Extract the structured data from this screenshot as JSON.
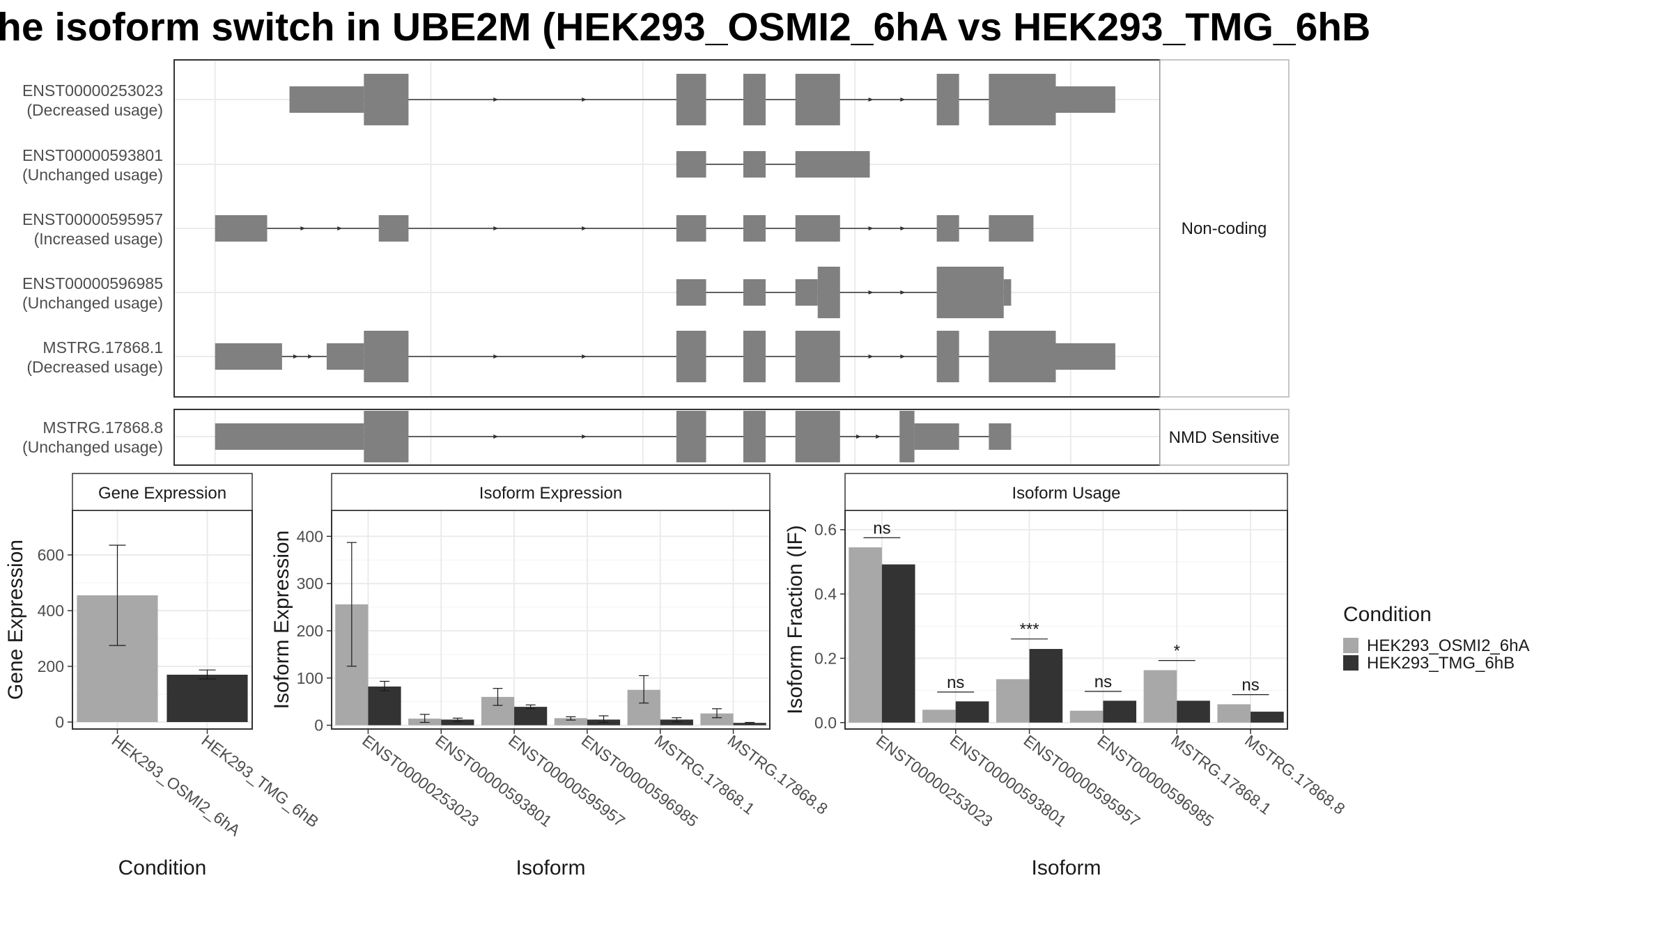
{
  "title": "he isoform switch in UBE2M (HEK293_OSMI2_6hA vs HEK293_TMG_6hB",
  "colors": {
    "cond_a": "#a8a8a8",
    "cond_b": "#333333",
    "exon": "#808080",
    "grid": "#ebebeb",
    "panel_border": "#333333",
    "strip_border": "#333333"
  },
  "structure_panels": [
    {
      "label": "Non-coding",
      "isoforms": [
        {
          "id": "ENST00000253023",
          "usage": "(Decreased usage)",
          "introns": [
            [
              0.48,
              0.65
            ],
            [
              0.79,
              0.8
            ]
          ],
          "blocks": [
            [
              0.96,
              1.06,
              "t"
            ],
            [
              1.06,
              1.12,
              "c"
            ],
            [
              1.48,
              1.52,
              "c"
            ],
            [
              1.57,
              1.6,
              "c"
            ],
            [
              1.64,
              1.7,
              "c"
            ],
            [
              1.83,
              1.86,
              "c"
            ],
            [
              1.9,
              1.99,
              "c"
            ],
            [
              1.99,
              2.07,
              "t"
            ]
          ]
        },
        {
          "id": "ENST00000593801",
          "usage": "(Unchanged usage)",
          "introns": [
            [
              1.48,
              1.7
            ]
          ],
          "blocks": [
            [
              1.48,
              1.52,
              "t"
            ],
            [
              1.57,
              1.6,
              "t"
            ],
            [
              1.64,
              1.74,
              "t"
            ]
          ]
        },
        {
          "id": "ENST00000595957",
          "usage": "(Increased usage)",
          "introns": [
            [
              0.86,
              1.01
            ]
          ],
          "blocks": [
            [
              0.86,
              0.93,
              "t"
            ],
            [
              1.08,
              1.12,
              "t"
            ],
            [
              1.48,
              1.52,
              "t"
            ],
            [
              1.57,
              1.6,
              "t"
            ],
            [
              1.64,
              1.7,
              "t"
            ],
            [
              1.83,
              1.86,
              "t"
            ],
            [
              1.9,
              1.96,
              "t"
            ]
          ]
        },
        {
          "id": "ENST00000596985",
          "usage": "(Unchanged usage)",
          "introns": [
            [
              1.48,
              1.88
            ]
          ],
          "blocks": [
            [
              1.48,
              1.52,
              "t"
            ],
            [
              1.57,
              1.6,
              "t"
            ],
            [
              1.64,
              1.67,
              "t"
            ],
            [
              1.67,
              1.7,
              "c"
            ],
            [
              1.83,
              1.92,
              "c"
            ],
            [
              1.92,
              1.93,
              "t"
            ]
          ]
        },
        {
          "id": "MSTRG.17868.1",
          "usage": "(Decreased usage)",
          "introns": [
            [
              0.86,
              1.99
            ]
          ],
          "blocks": [
            [
              0.86,
              0.95,
              "t"
            ],
            [
              1.01,
              1.06,
              "t"
            ],
            [
              1.06,
              1.12,
              "c"
            ],
            [
              1.48,
              1.52,
              "c"
            ],
            [
              1.57,
              1.6,
              "c"
            ],
            [
              1.64,
              1.7,
              "c"
            ],
            [
              1.83,
              1.86,
              "c"
            ],
            [
              1.9,
              1.99,
              "c"
            ],
            [
              1.99,
              2.07,
              "t"
            ]
          ]
        }
      ]
    },
    {
      "label": "NMD Sensitive",
      "isoforms": [
        {
          "id": "MSTRG.17868.8",
          "usage": "(Unchanged usage)",
          "introns": [
            [
              0.86,
              1.93
            ]
          ],
          "blocks": [
            [
              0.86,
              1.06,
              "t"
            ],
            [
              1.06,
              1.12,
              "c"
            ],
            [
              1.48,
              1.52,
              "c"
            ],
            [
              1.57,
              1.6,
              "c"
            ],
            [
              1.64,
              1.7,
              "c"
            ],
            [
              1.78,
              1.8,
              "c"
            ],
            [
              1.8,
              1.86,
              "t"
            ],
            [
              1.9,
              1.93,
              "t"
            ]
          ]
        }
      ]
    }
  ],
  "chart_data": [
    {
      "type": "bar",
      "title": "Gene Expression",
      "xlabel": "Condition",
      "ylabel": "Gene Expression",
      "ylim": [
        -25,
        760
      ],
      "yticks": [
        0,
        200,
        400,
        600
      ],
      "categories": [
        "HEK293_OSMI2_6hA",
        "HEK293_TMG_6hB"
      ],
      "values": [
        455,
        170
      ],
      "errors": [
        [
          275,
          635
        ],
        [
          155,
          187
        ]
      ],
      "bar_colors": [
        "#a8a8a8",
        "#333333"
      ]
    },
    {
      "type": "bar",
      "title": "Isoform Expression",
      "xlabel": "Isoform",
      "ylabel": "Isoform Expression",
      "ylim": [
        -8,
        455
      ],
      "yticks": [
        0,
        100,
        200,
        300,
        400
      ],
      "categories": [
        "ENST00000253023",
        "ENST00000593801",
        "ENST00000595957",
        "ENST00000596985",
        "MSTRG.17868.1",
        "MSTRG.17868.8"
      ],
      "series": [
        {
          "name": "HEK293_OSMI2_6hA",
          "values": [
            256,
            14,
            60,
            15,
            75,
            25
          ],
          "errors": [
            [
              125,
              387
            ],
            [
              6,
              23
            ],
            [
              42,
              78
            ],
            [
              11,
              18
            ],
            [
              47,
              105
            ],
            [
              16,
              35
            ]
          ]
        },
        {
          "name": "HEK293_TMG_6hB",
          "values": [
            82,
            12,
            39,
            12,
            12,
            5
          ],
          "errors": [
            [
              73,
              93
            ],
            [
              8,
              15
            ],
            [
              35,
              43
            ],
            [
              6,
              20
            ],
            [
              7,
              16
            ],
            [
              3,
              6
            ]
          ]
        }
      ]
    },
    {
      "type": "bar",
      "title": "Isoform Usage",
      "xlabel": "Isoform",
      "ylabel": "Isoform Fraction (IF)",
      "ylim": [
        -0.02,
        0.66
      ],
      "yticks": [
        0.0,
        0.2,
        0.4,
        0.6
      ],
      "ytick_labels": [
        "0.0",
        "0.2",
        "0.4",
        "0.6"
      ],
      "categories": [
        "ENST00000253023",
        "ENST00000593801",
        "ENST00000595957",
        "ENST00000596985",
        "MSTRG.17868.1",
        "MSTRG.17868.8"
      ],
      "series": [
        {
          "name": "HEK293_OSMI2_6hA",
          "values": [
            0.545,
            0.04,
            0.135,
            0.037,
            0.163,
            0.057
          ]
        },
        {
          "name": "HEK293_TMG_6hB",
          "values": [
            0.492,
            0.066,
            0.229,
            0.068,
            0.068,
            0.034
          ]
        }
      ],
      "significance": [
        "ns",
        "ns",
        "***",
        "ns",
        "*",
        "ns"
      ],
      "sig_levels": [
        0.575,
        0.095,
        0.26,
        0.097,
        0.193,
        0.087
      ]
    }
  ],
  "legend": {
    "title": "Condition",
    "items": [
      {
        "label": "HEK293_OSMI2_6hA",
        "color": "#a8a8a8"
      },
      {
        "label": "HEK293_TMG_6hB",
        "color": "#333333"
      }
    ]
  }
}
